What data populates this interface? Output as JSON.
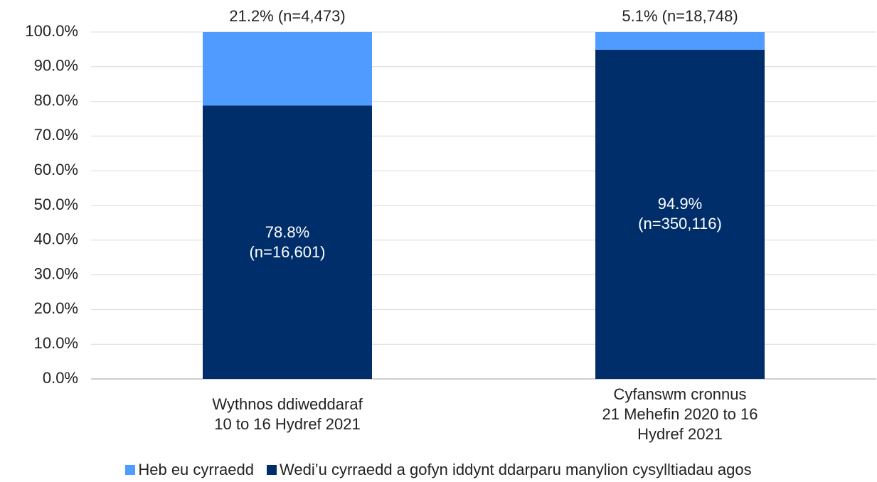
{
  "chart_data": {
    "type": "stacked_bar",
    "categories": [
      "Wythnos ddiweddaraf\n10 to 16 Hydref 2021",
      "Cyfanswm cronnus\n21 Mehefin 2020 to 16 Hydref 2021"
    ],
    "series": [
      {
        "name": "Heb eu cyrraedd",
        "color": "#4f9bff",
        "values": [
          21.2,
          5.1
        ],
        "value_labels": [
          "21.2% (n=4,473)",
          "5.1% (n=18,748)"
        ]
      },
      {
        "name": "Wedi’u cyrraedd a gofyn iddynt ddarparu manylion cysylltiadau agos",
        "color": "#002e6b",
        "values": [
          78.8,
          94.9
        ],
        "value_labels": [
          "78.8%\n(n=16,601)",
          "94.9%\n(n=350,116)"
        ]
      }
    ],
    "ylim": [
      0,
      100
    ],
    "yticks": [
      {
        "value": 0,
        "label": "0.0%"
      },
      {
        "value": 10,
        "label": "10.0%"
      },
      {
        "value": 20,
        "label": "20.0%"
      },
      {
        "value": 30,
        "label": "30.0%"
      },
      {
        "value": 40,
        "label": "40.0%"
      },
      {
        "value": 50,
        "label": "50.0%"
      },
      {
        "value": 60,
        "label": "60.0%"
      },
      {
        "value": 70,
        "label": "70.0%"
      },
      {
        "value": 80,
        "label": "80.0%"
      },
      {
        "value": 90,
        "label": "90.0%"
      },
      {
        "value": 100,
        "label": "100.0%"
      }
    ],
    "grid": true,
    "legend": "bottom"
  }
}
